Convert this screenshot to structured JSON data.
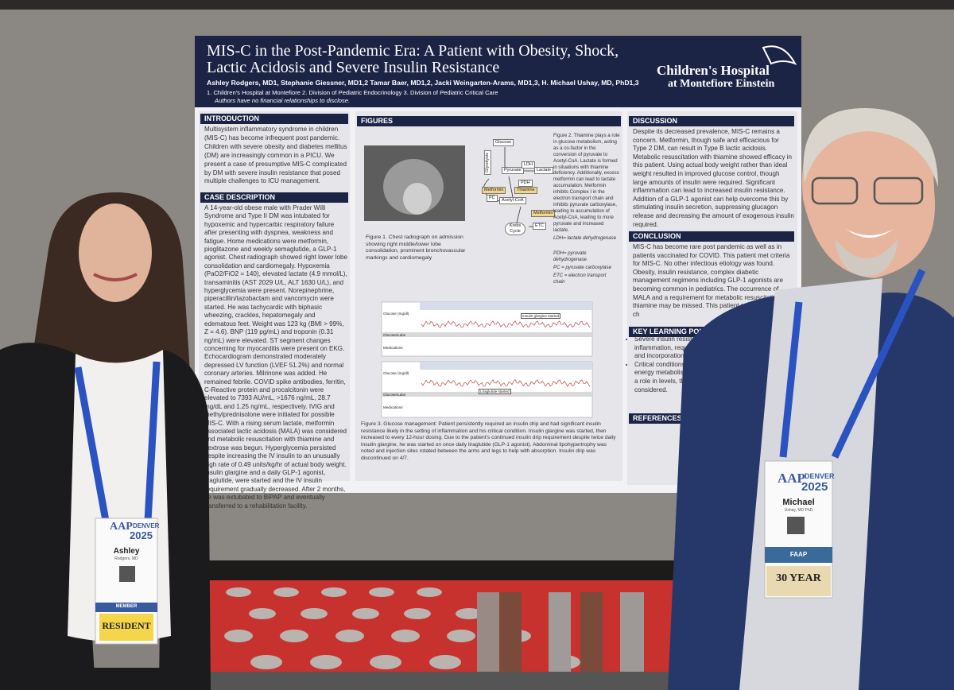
{
  "poster": {
    "title": "MIS-C in the Post-Pandemic Era: A Patient with Obesity, Shock, Lactic Acidosis and Severe Insulin Resistance",
    "authors": "Ashley Rodgers, MD1, Stephanie Giessner, MD1,2 Tamar Baer, MD1,2, Jacki Weingarten-Arams, MD1,3, H. Michael Ushay, MD, PhD1,3",
    "affiliations": "1. Children's Hospital at Montefiore 2. Division of Pediatric Endocrinology 3. Division of Pediatric Critical Care",
    "disclosure": "Authors have no financial relationships to disclose.",
    "logo": {
      "line1": "Children's Hospital",
      "line2": "at Montefiore Einstein"
    },
    "introduction": {
      "heading": "INTRODUCTION",
      "body": "Multisystem inflammatory syndrome in children (MIS-C) has become infrequent post pandemic. Children with severe obesity and diabetes mellitus (DM) are increasingly common in a PICU. We present a case of presumptive MIS-C complicated by DM with severe insulin resistance that posed multiple challenges to ICU management."
    },
    "case_description": {
      "heading": "CASE DESCRIPTION",
      "body": "A 14-year-old obese male with Prader Willi Syndrome and Type II DM was intubated for hypoxemic and hypercarbic respiratory failure after presenting with dyspnea, weakness and fatigue. Home medications were metformin, pioglitazone and weekly semaglutide, a GLP-1 agonist. Chest radiograph showed right lower lobe consolidation and cardiomegaly. Hypoxemia (PaO2/FiO2 = 140), elevated lactate (4.9 mmol/L), transaminitis (AST 2029 U/L, ALT 1630 U/L), and hyperglycemia were present. Norepinephrine, piperacillin/tazobactam and vancomycin were started. He was tachycardic with biphasic wheezing, crackles, hepatomegaly and edematous feet. Weight was 123 kg (BMI > 99%, Z = 4.6). BNP (119 pg/mL) and troponin (0.31 ng/mL) were elevated. ST segment changes concerning for myocarditis were present on EKG. Echocardiogram demonstrated moderately depressed LV function (LVEF 51.2%) and normal coronary arteries. Milrinone was added. He remained febrile. COVID spike antibodies, ferritin, C-Reactive protein and procalcitonin were elevated to 7393 AU/mL, >1676 ng/mL, 28.7 mg/dL and 1.25 ng/mL, respectively. IVIG and methylprednisolone were initiated for possible MIS-C. With a rising serum lactate, metformin associated lactic acidosis (MALA) was considered and metabolic resuscitation with thiamine and dextrose was begun. Hyperglycemia persisted despite increasing the IV insulin to an unusually high rate of 0.49 units/kg/hr of actual body weight. Insulin glargine and a daily GLP-1 agonist, liraglutide, were started and the IV insulin requirement gradually decreased. After 2 months, he was extubated to BiPAP and eventually transferred to a rehabilitation facility."
    },
    "figures": {
      "heading": "FIGURES",
      "figure1_caption": "Figure 1. Chest radiograph on admission showing right middle/lower lobe consolidation, prominent bronchovascular markings and cardiomegaly",
      "diagram_labels": [
        "Glucose",
        "Glycolysis",
        "Pyruvate",
        "LDH",
        "Lactate",
        "PDH",
        "Thiamine",
        "Metformin",
        "PC",
        "Acetyl-CoA",
        "Metformin",
        "Krebs Cycle",
        "ETC"
      ],
      "figure2_caption": "Figure 2. Thiamine plays a role in glucose metabolism, acting as a co-factor in the conversion of pyruvate to Acetyl-CoA. Lactate is formed in situations with thiamine deficiency. Additionally, excess metformin can lead to lactate accumulation. Metformin inhibits Complex I in the electron transport chain and inhibits pyruvate carboxylase, leading to accumulation of Acetyl-CoA, leading to more pyruvate and increased lactate.",
      "abbreviations": [
        "LDH= lactate dehydrogenase",
        "PDH= pyruvate dehydrogenase",
        "PC = pyruvate carboxylase",
        "ETC = electron transport chain"
      ],
      "chart_labels": [
        "Glucose (mg/dl)",
        "Insulin glargine started",
        "Glucose/Labs",
        "Medications",
        "Glucose (mg/dl)",
        "Liraglutide started",
        "Glucose/Labs",
        "Medications"
      ],
      "figure3_caption": "Figure 3. Glucose management: Patient persistently required an insulin drip and had significant insulin resistance likely in the setting of inflammation and his critical condition. Insulin glargine was started, then increased to every 12-hour dosing. Due to the patient's continued insulin drip requirement despite twice daily insulin glargine, he was started on once daily liraglutide (GLP-1 agonist). Abdominal lipohypertrophy was noted and injection sites rotated between the arms and legs to help with absorption. Insulin drip was discontinued on 4/7."
    },
    "discussion": {
      "heading": "DISCUSSION",
      "body": "Despite its decreased prevalence, MIS-C remains a concern. Metformin, though safe and efficacious for Type 2 DM, can result in Type B lactic acidosis. Metabolic resuscitation with thiamine showed efficacy in this patient. Using actual body weight rather than ideal weight resulted in improved glucose control, though large amounts of insulin were required. Significant inflammation can lead to increased insulin resistance. Addition of a GLP-1 agonist can help overcome this by stimulating insulin secretion, suppressing glucagon release and decreasing the amount of exogenous insulin required."
    },
    "conclusion": {
      "heading": "CONCLUSION",
      "body": "MIS-C has become rare post pandemic as well as in patients vaccinated for COVID. This patient met criteria for MIS-C. No other infectious etiology was found. Obesity, insulin resistance, complex diabetic management regimens including GLP-1 agonists are becoming common in pediatrics. The occurrence of MALA and a requirement for metabolic resuscitation with thiamine may be missed. This patient presented many ch"
    },
    "key_learning_points": {
      "heading": "KEY LEARNING POINTS",
      "bullets": [
        "Severe insulin resistance can occu of inflammation, requiring high insu basal insulin and incorporation of G",
        "Critical conditions may lead to ove thiamine for energy metabolism. M accumulation may play a role in levels, therefore thiamine resus considered."
      ]
    },
    "references": {
      "heading": "REFERENCES"
    }
  },
  "badges": [
    {
      "logo": "AAP",
      "city": "DENVER",
      "year": "2025",
      "name": "Ashley",
      "detail": "Rodgers, MD",
      "ribbon": "MEMBER",
      "tag": "RESIDENT"
    },
    {
      "logo": "AAP",
      "city": "DENVER",
      "year": "2025",
      "name": "Michael",
      "detail": "Ushay, MD PhD",
      "ribbon": "FAAP",
      "tag": "30 YEAR"
    }
  ]
}
